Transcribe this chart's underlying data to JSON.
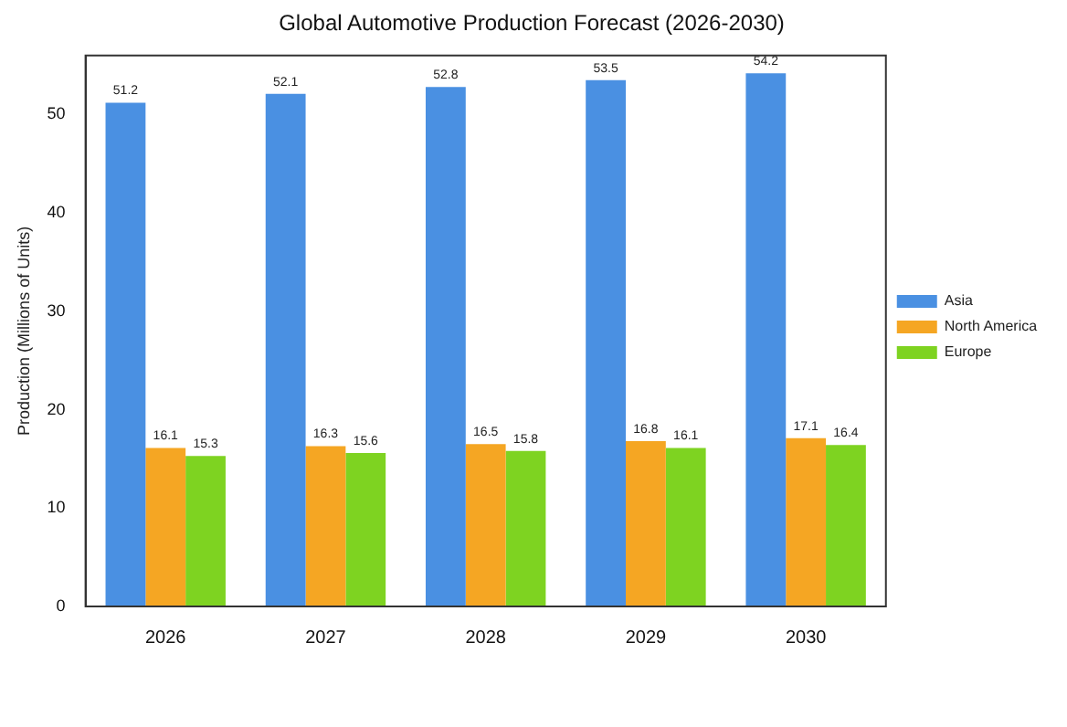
{
  "chart_data": {
    "type": "bar",
    "title": "Global Automotive Production Forecast (2026-2030)",
    "ylabel": "Production (Millions of Units)",
    "categories": [
      "2026",
      "2027",
      "2028",
      "2029",
      "2030"
    ],
    "series": [
      {
        "name": "Asia",
        "color": "#4a90e2",
        "values": [
          51.2,
          52.1,
          52.8,
          53.5,
          54.2
        ]
      },
      {
        "name": "North America",
        "color": "#f5a623",
        "values": [
          16.1,
          16.3,
          16.5,
          16.8,
          17.1
        ]
      },
      {
        "name": "Europe",
        "color": "#7ed321",
        "values": [
          15.3,
          15.6,
          15.8,
          16.1,
          16.4
        ]
      }
    ],
    "ylim": [
      0,
      56
    ],
    "yticks": [
      0,
      10,
      20,
      30,
      40,
      50
    ],
    "grid": false,
    "legend": "right",
    "data_labels": true
  }
}
